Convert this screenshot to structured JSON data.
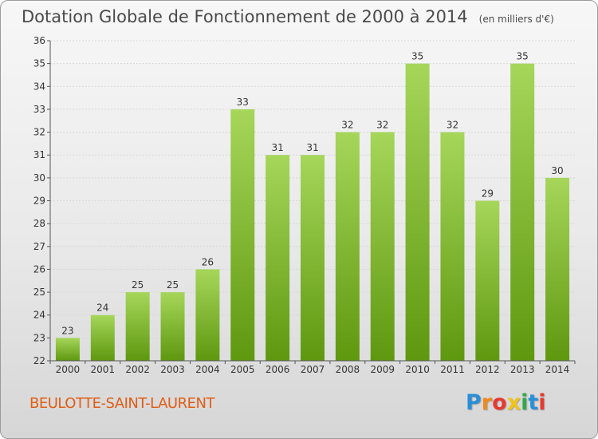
{
  "header": {
    "title": "Dotation Globale de Fonctionnement de 2000 à 2014",
    "unit": "(en milliers d'€)"
  },
  "footer": {
    "commune": "BEULOTTE-SAINT-LAURENT",
    "logo_letters": [
      "P",
      "r",
      "o",
      "x",
      "i",
      "t",
      "i"
    ],
    "logo_colors": [
      "#2a8fd6",
      "#f08a1a",
      "#e63a2e",
      "#f0c419",
      "#36a84a",
      "#2a8fd6",
      "#e63a2e"
    ]
  },
  "colors": {
    "bar_light": "#a6d65a",
    "bar_dark": "#5e980f",
    "grid": "#d7d7d7",
    "axis": "#555555",
    "title": "#4a4a4a",
    "commune": "#e05d16"
  },
  "chart_data": {
    "type": "bar",
    "categories": [
      "2000",
      "2001",
      "2002",
      "2003",
      "2004",
      "2005",
      "2006",
      "2007",
      "2008",
      "2009",
      "2010",
      "2011",
      "2012",
      "2013",
      "2014"
    ],
    "values": [
      23,
      24,
      25,
      25,
      26,
      33,
      31,
      31,
      32,
      32,
      35,
      32,
      29,
      35,
      30
    ],
    "title": "Dotation Globale de Fonctionnement de 2000 à 2014",
    "xlabel": "",
    "ylabel": "",
    "ylim": [
      22,
      36
    ],
    "yticks": [
      22,
      23,
      24,
      25,
      26,
      27,
      28,
      29,
      30,
      31,
      32,
      33,
      34,
      35,
      36
    ],
    "grid": true,
    "data_labels": true
  }
}
